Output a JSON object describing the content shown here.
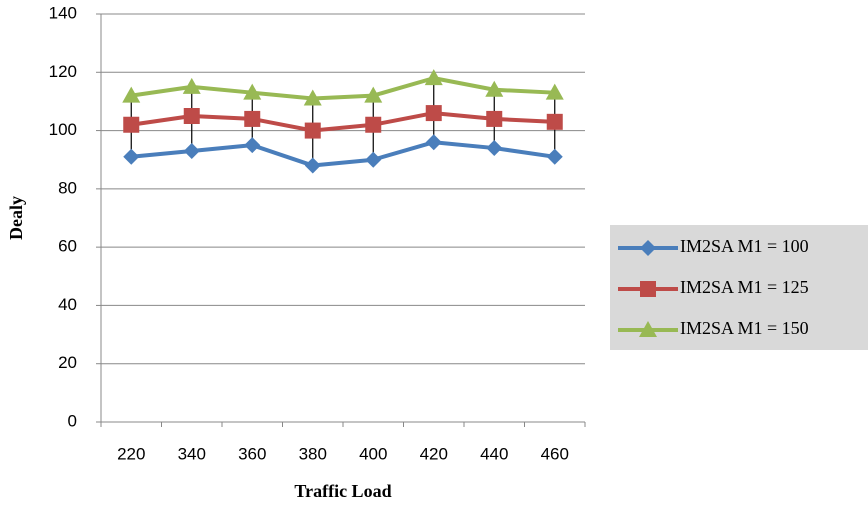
{
  "chart_data": {
    "type": "line",
    "x_label": "Traffic Load",
    "y_label": "Dealy",
    "categories": [
      "220",
      "340",
      "360",
      "380",
      "400",
      "420",
      "440",
      "460"
    ],
    "series": [
      {
        "name": "IM2SA M1 = 100",
        "color": "#4a7ebb",
        "marker": "diamond",
        "values": [
          91,
          93,
          95,
          88,
          90,
          96,
          94,
          91
        ]
      },
      {
        "name": "IM2SA M1 = 125",
        "color": "#be4b48",
        "marker": "square",
        "values": [
          102,
          105,
          104,
          100,
          102,
          106,
          104,
          103
        ]
      },
      {
        "name": "IM2SA M1 = 150",
        "color": "#98b954",
        "marker": "triangle",
        "values": [
          112,
          115,
          113,
          111,
          112,
          118,
          114,
          113
        ]
      }
    ],
    "ylim": [
      0,
      140
    ],
    "yticks": [
      0,
      20,
      40,
      60,
      80,
      100,
      120,
      140
    ],
    "grid": true,
    "high_low_lines": true,
    "legend": "right"
  }
}
